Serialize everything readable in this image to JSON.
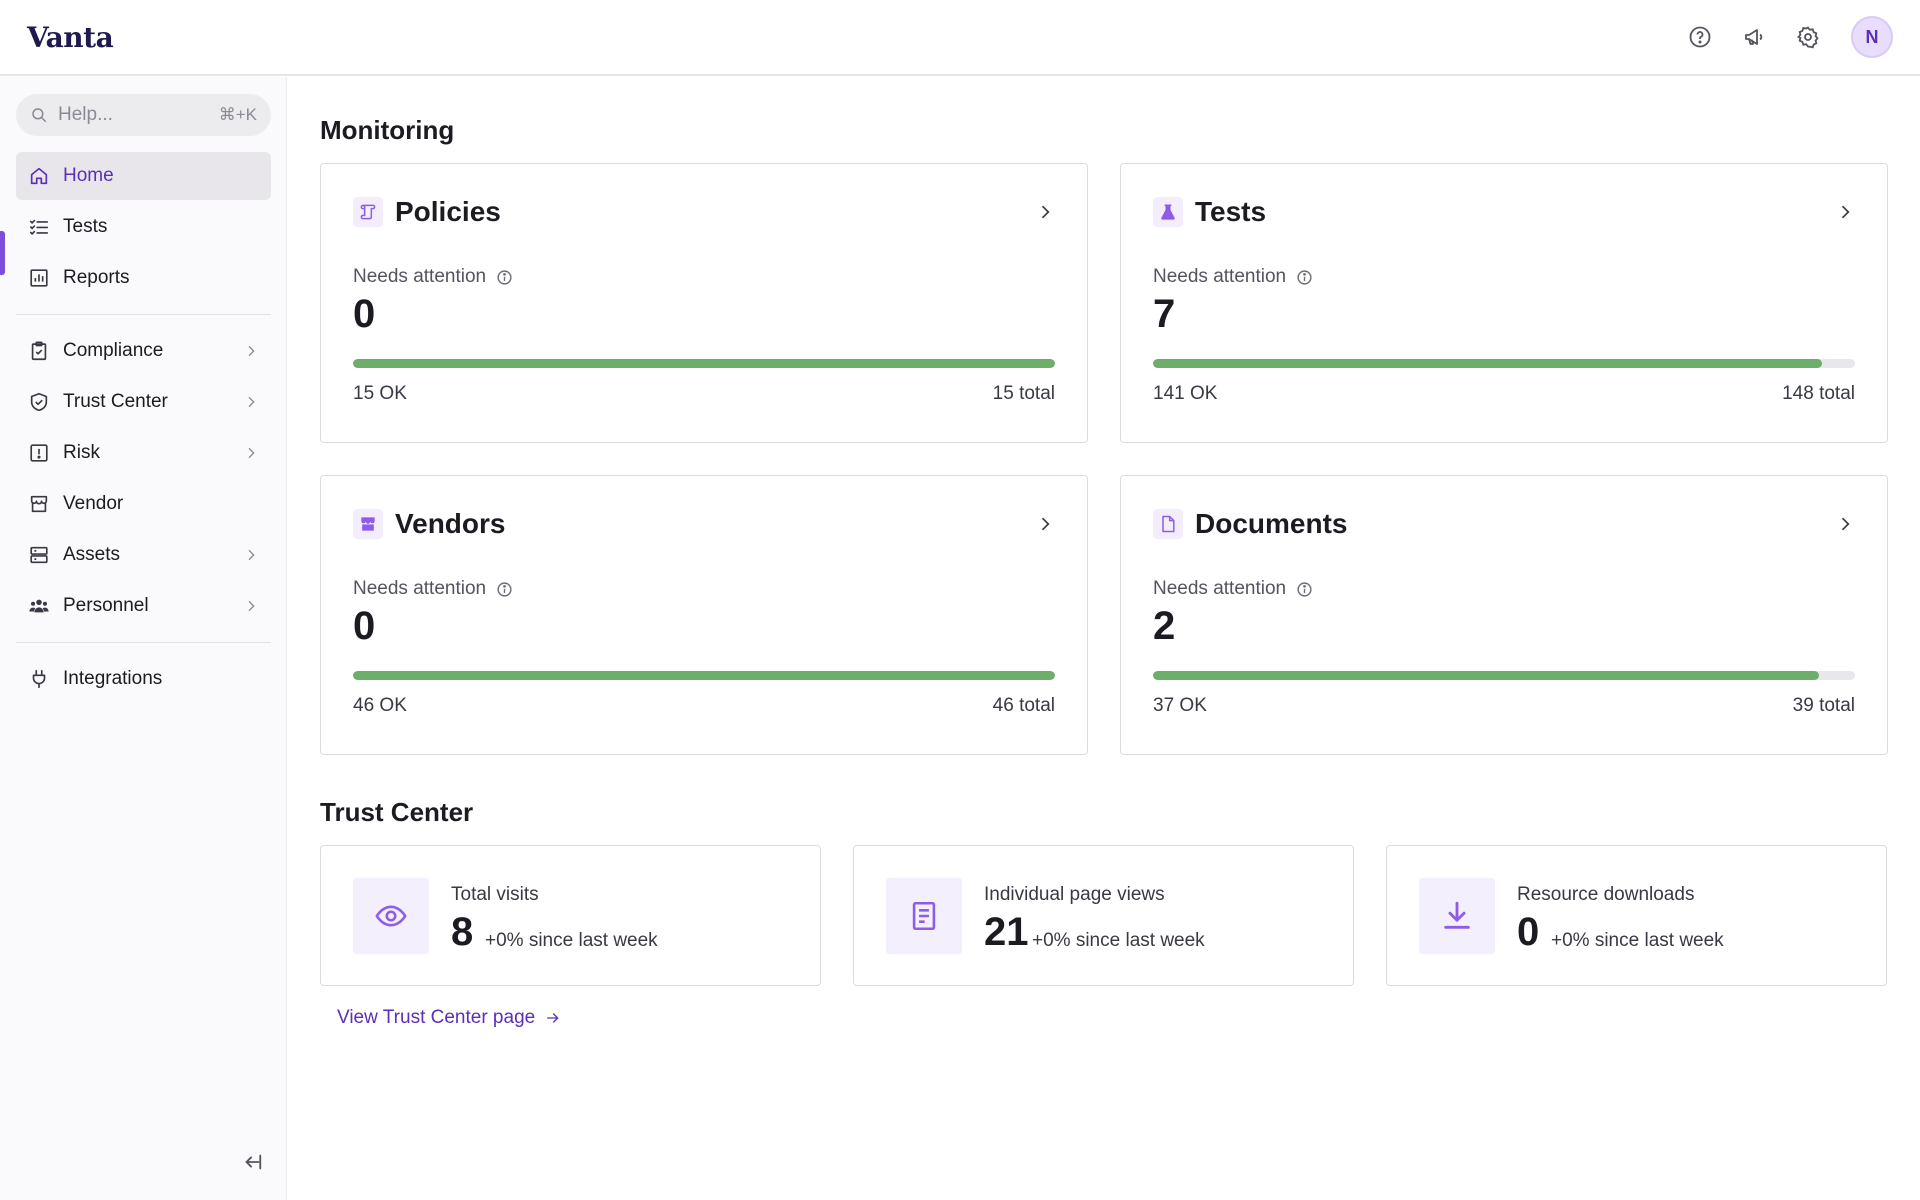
{
  "app": {
    "logo": "Vanta",
    "avatar_initial": "N",
    "accent_color": "#7c4ddb",
    "success_color": "#6cae6a"
  },
  "header_icons": [
    "help-circle-icon",
    "megaphone-icon",
    "gear-icon"
  ],
  "search": {
    "placeholder": "Help...",
    "shortcut": "⌘+K"
  },
  "sidebar": {
    "primary": [
      {
        "label": "Home",
        "icon": "home-icon",
        "active": true
      },
      {
        "label": "Tests",
        "icon": "checklist-icon"
      },
      {
        "label": "Reports",
        "icon": "chart-icon"
      }
    ],
    "secondary": [
      {
        "label": "Compliance",
        "icon": "clipboard-check-icon",
        "chevron": true
      },
      {
        "label": "Trust Center",
        "icon": "shield-check-icon",
        "chevron": true
      },
      {
        "label": "Risk",
        "icon": "alert-square-icon",
        "chevron": true
      },
      {
        "label": "Vendor",
        "icon": "store-icon",
        "chevron": false
      },
      {
        "label": "Assets",
        "icon": "server-icon",
        "chevron": true
      },
      {
        "label": "Personnel",
        "icon": "users-icon",
        "chevron": true
      }
    ],
    "tertiary": [
      {
        "label": "Integrations",
        "icon": "plug-icon"
      }
    ]
  },
  "monitoring": {
    "title": "Monitoring",
    "attention_label": "Needs attention",
    "cards": [
      {
        "title": "Policies",
        "icon": "scroll-icon",
        "needs_attention": "0",
        "ok": "15 OK",
        "total": "15 total",
        "progress": 1.0
      },
      {
        "title": "Tests",
        "icon": "flask-icon",
        "needs_attention": "7",
        "ok": "141 OK",
        "total": "148 total",
        "progress": 0.953
      },
      {
        "title": "Vendors",
        "icon": "store-icon",
        "needs_attention": "0",
        "ok": "46 OK",
        "total": "46 total",
        "progress": 1.0
      },
      {
        "title": "Documents",
        "icon": "document-icon",
        "needs_attention": "2",
        "ok": "37 OK",
        "total": "39 total",
        "progress": 0.949
      }
    ]
  },
  "trust_center": {
    "title": "Trust Center",
    "stats": [
      {
        "label": "Total visits",
        "value": "8",
        "change": "+0% since last week",
        "icon": "eye-icon"
      },
      {
        "label": "Individual page views",
        "value": "21",
        "change": "+0% since last week",
        "icon": "page-icon"
      },
      {
        "label": "Resource downloads",
        "value": "0",
        "change": "+0% since last week",
        "icon": "download-icon"
      }
    ],
    "link_label": "View Trust Center page"
  }
}
